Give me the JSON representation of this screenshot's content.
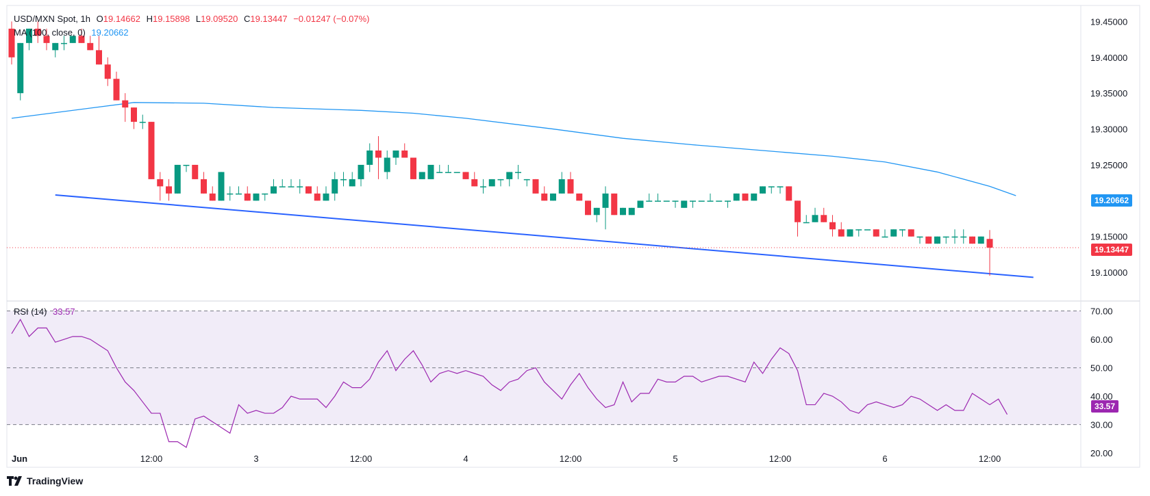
{
  "header": {
    "symbol": "USD/MXN Spot, 1h",
    "open_label": "O",
    "open": "19.14662",
    "high_label": "H",
    "high": "19.15898",
    "low_label": "L",
    "low": "19.09520",
    "close_label": "C",
    "close": "19.13447",
    "change": "−0.01247 (−0.07%)",
    "ma_label": "MA (100, close, 0)",
    "ma_value": "19.20662"
  },
  "rsi": {
    "label": "RSI (14)",
    "value": "33.57"
  },
  "brand": {
    "name": "TradingView"
  },
  "colors": {
    "up": "#089981",
    "down": "#f23645",
    "ma": "#2196f3",
    "trend": "#2962ff",
    "rsi": "#9c27b0",
    "rsi_band": "#ede7f6"
  },
  "chart_data": [
    {
      "type": "candlestick",
      "title": "USD/MXN Spot, 1h",
      "ylim": [
        19.06,
        19.48
      ],
      "y_ticks": [
        "19.45000",
        "19.40000",
        "19.35000",
        "19.30000",
        "19.25000",
        "19.20000",
        "19.15000",
        "19.10000"
      ],
      "x_tick_labels": [
        "Jun",
        "12:00",
        "3",
        "12:00",
        "4",
        "12:00",
        "5",
        "12:00",
        "6",
        "12:00"
      ],
      "x_tick_index": [
        0,
        16,
        28,
        40,
        52,
        64,
        76,
        88,
        100,
        112
      ],
      "candles_ohlc": [
        [
          19.44,
          19.45,
          19.39,
          19.4
        ],
        [
          19.35,
          19.42,
          19.34,
          19.42
        ],
        [
          19.42,
          19.44,
          19.41,
          19.44
        ],
        [
          19.44,
          19.45,
          19.42,
          19.43
        ],
        [
          19.43,
          19.44,
          19.41,
          19.42
        ],
        [
          19.41,
          19.42,
          19.4,
          19.42
        ],
        [
          19.42,
          19.43,
          19.41,
          19.42
        ],
        [
          19.42,
          19.43,
          19.42,
          19.43
        ],
        [
          19.43,
          19.44,
          19.42,
          19.42
        ],
        [
          19.42,
          19.43,
          19.41,
          19.41
        ],
        [
          19.41,
          19.43,
          19.39,
          19.39
        ],
        [
          19.39,
          19.4,
          19.36,
          19.37
        ],
        [
          19.37,
          19.38,
          19.34,
          19.34
        ],
        [
          19.34,
          19.35,
          19.31,
          19.33
        ],
        [
          19.33,
          19.33,
          19.3,
          19.31
        ],
        [
          19.31,
          19.32,
          19.3,
          19.31
        ],
        [
          19.31,
          19.31,
          19.23,
          19.23
        ],
        [
          19.23,
          19.24,
          19.2,
          19.22
        ],
        [
          19.22,
          19.23,
          19.2,
          19.21
        ],
        [
          19.21,
          19.25,
          19.21,
          19.25
        ],
        [
          19.25,
          19.25,
          19.24,
          19.25
        ],
        [
          19.25,
          19.25,
          19.23,
          19.23
        ],
        [
          19.23,
          19.24,
          19.21,
          19.21
        ],
        [
          19.21,
          19.22,
          19.2,
          19.2
        ],
        [
          19.2,
          19.24,
          19.2,
          19.24
        ],
        [
          19.21,
          19.22,
          19.2,
          19.21
        ],
        [
          19.21,
          19.22,
          19.21,
          19.21
        ],
        [
          19.21,
          19.22,
          19.2,
          19.2
        ],
        [
          19.2,
          19.21,
          19.2,
          19.21
        ],
        [
          19.21,
          19.21,
          19.2,
          19.21
        ],
        [
          19.21,
          19.23,
          19.21,
          19.22
        ],
        [
          19.22,
          19.23,
          19.22,
          19.22
        ],
        [
          19.22,
          19.23,
          19.22,
          19.22
        ],
        [
          19.22,
          19.23,
          19.21,
          19.22
        ],
        [
          19.22,
          19.22,
          19.21,
          19.21
        ],
        [
          19.21,
          19.22,
          19.2,
          19.2
        ],
        [
          19.2,
          19.22,
          19.2,
          19.21
        ],
        [
          19.21,
          19.24,
          19.2,
          19.23
        ],
        [
          19.23,
          19.24,
          19.22,
          19.23
        ],
        [
          19.22,
          19.24,
          19.22,
          19.23
        ],
        [
          19.23,
          19.25,
          19.22,
          19.25
        ],
        [
          19.25,
          19.28,
          19.24,
          19.27
        ],
        [
          19.27,
          19.29,
          19.23,
          19.26
        ],
        [
          19.24,
          19.27,
          19.23,
          19.26
        ],
        [
          19.26,
          19.27,
          19.25,
          19.27
        ],
        [
          19.27,
          19.28,
          19.26,
          19.26
        ],
        [
          19.26,
          19.26,
          19.23,
          19.23
        ],
        [
          19.23,
          19.24,
          19.23,
          19.24
        ],
        [
          19.23,
          19.25,
          19.23,
          19.25
        ],
        [
          19.24,
          19.25,
          19.24,
          19.24
        ],
        [
          19.24,
          19.25,
          19.24,
          19.24
        ],
        [
          19.24,
          19.24,
          19.24,
          19.24
        ],
        [
          19.24,
          19.24,
          19.23,
          19.23
        ],
        [
          19.23,
          19.24,
          19.22,
          19.22
        ],
        [
          19.22,
          19.23,
          19.21,
          19.22
        ],
        [
          19.22,
          19.23,
          19.22,
          19.23
        ],
        [
          19.23,
          19.23,
          19.22,
          19.23
        ],
        [
          19.23,
          19.24,
          19.22,
          19.24
        ],
        [
          19.24,
          19.25,
          19.23,
          19.24
        ],
        [
          19.23,
          19.23,
          19.22,
          19.23
        ],
        [
          19.23,
          19.23,
          19.21,
          19.21
        ],
        [
          19.21,
          19.22,
          19.2,
          19.2
        ],
        [
          19.2,
          19.21,
          19.2,
          19.21
        ],
        [
          19.21,
          19.24,
          19.21,
          19.23
        ],
        [
          19.23,
          19.24,
          19.21,
          19.21
        ],
        [
          19.21,
          19.21,
          19.2,
          19.2
        ],
        [
          19.2,
          19.2,
          19.18,
          19.18
        ],
        [
          19.18,
          19.19,
          19.17,
          19.19
        ],
        [
          19.19,
          19.22,
          19.16,
          19.21
        ],
        [
          19.21,
          19.21,
          19.18,
          19.18
        ],
        [
          19.18,
          19.19,
          19.18,
          19.19
        ],
        [
          19.18,
          19.19,
          19.18,
          19.19
        ],
        [
          19.19,
          19.2,
          19.19,
          19.2
        ],
        [
          19.2,
          19.21,
          19.2,
          19.2
        ],
        [
          19.2,
          19.21,
          19.2,
          19.2
        ],
        [
          19.2,
          19.2,
          19.2,
          19.2
        ],
        [
          19.2,
          19.2,
          19.19,
          19.2
        ],
        [
          19.19,
          19.2,
          19.19,
          19.2
        ],
        [
          19.2,
          19.2,
          19.19,
          19.2
        ],
        [
          19.2,
          19.2,
          19.2,
          19.2
        ],
        [
          19.2,
          19.21,
          19.2,
          19.2
        ],
        [
          19.2,
          19.2,
          19.2,
          19.2
        ],
        [
          19.2,
          19.2,
          19.19,
          19.2
        ],
        [
          19.2,
          19.21,
          19.2,
          19.21
        ],
        [
          19.21,
          19.21,
          19.2,
          19.2
        ],
        [
          19.2,
          19.21,
          19.2,
          19.21
        ],
        [
          19.21,
          19.22,
          19.21,
          19.22
        ],
        [
          19.22,
          19.22,
          19.21,
          19.22
        ],
        [
          19.22,
          19.22,
          19.21,
          19.22
        ],
        [
          19.22,
          19.22,
          19.2,
          19.2
        ],
        [
          19.2,
          19.2,
          19.15,
          19.17
        ],
        [
          19.17,
          19.18,
          19.17,
          19.17
        ],
        [
          19.17,
          19.19,
          19.17,
          19.18
        ],
        [
          19.18,
          19.19,
          19.17,
          19.17
        ],
        [
          19.17,
          19.18,
          19.15,
          19.16
        ],
        [
          19.16,
          19.17,
          19.15,
          19.15
        ],
        [
          19.15,
          19.16,
          19.15,
          19.16
        ],
        [
          19.16,
          19.16,
          19.15,
          19.16
        ],
        [
          19.16,
          19.16,
          19.16,
          19.16
        ],
        [
          19.16,
          19.16,
          19.15,
          19.15
        ],
        [
          19.15,
          19.16,
          19.15,
          19.15
        ],
        [
          19.15,
          19.16,
          19.15,
          19.16
        ],
        [
          19.16,
          19.16,
          19.15,
          19.16
        ],
        [
          19.16,
          19.16,
          19.15,
          19.15
        ],
        [
          19.15,
          19.15,
          19.14,
          19.15
        ],
        [
          19.15,
          19.15,
          19.14,
          19.14
        ],
        [
          19.14,
          19.15,
          19.14,
          19.15
        ],
        [
          19.15,
          19.15,
          19.14,
          19.15
        ],
        [
          19.15,
          19.16,
          19.14,
          19.15
        ],
        [
          19.15,
          19.16,
          19.14,
          19.15
        ],
        [
          19.15,
          19.15,
          19.14,
          19.14
        ],
        [
          19.14,
          19.15,
          19.14,
          19.15
        ],
        [
          19.14662,
          19.15898,
          19.0952,
          19.13447
        ]
      ],
      "ma100": [
        [
          0,
          19.315
        ],
        [
          14,
          19.337
        ],
        [
          22,
          19.336
        ],
        [
          30,
          19.33
        ],
        [
          40,
          19.326
        ],
        [
          46,
          19.322
        ],
        [
          52,
          19.315
        ],
        [
          62,
          19.3
        ],
        [
          70,
          19.287
        ],
        [
          78,
          19.278
        ],
        [
          86,
          19.27
        ],
        [
          94,
          19.262
        ],
        [
          100,
          19.254
        ],
        [
          106,
          19.24
        ],
        [
          112,
          19.22
        ],
        [
          115,
          19.207
        ]
      ],
      "ma100_last": "19.20662",
      "last_price": "19.13447",
      "trendline": [
        [
          5,
          19.208
        ],
        [
          117,
          19.093
        ]
      ]
    },
    {
      "type": "line",
      "title": "RSI (14)",
      "ylim": [
        15,
        73
      ],
      "y_ticks": [
        "70.00",
        "60.00",
        "50.00",
        "40.00",
        "30.00",
        "20.00"
      ],
      "levels": [
        70,
        50,
        30
      ],
      "values": [
        62,
        67,
        61,
        64,
        64,
        59,
        60,
        61,
        61,
        60,
        58,
        56,
        50,
        45,
        42,
        38,
        34,
        34,
        24,
        24,
        22,
        32,
        33,
        31,
        29,
        27,
        37,
        34,
        35,
        34,
        34,
        36,
        40,
        39,
        39,
        39,
        36,
        40,
        45,
        43,
        43,
        46,
        52,
        56,
        49,
        53,
        56,
        51,
        45,
        48,
        49,
        48,
        49,
        48,
        47,
        44,
        42,
        45,
        46,
        49,
        50,
        45,
        42,
        39,
        44,
        48,
        43,
        39,
        36,
        37,
        45,
        38,
        41,
        41,
        46,
        45,
        45,
        47,
        47,
        45,
        46,
        47,
        47,
        46,
        45,
        52,
        48,
        53,
        57,
        55,
        49,
        37,
        37,
        41,
        40,
        38,
        35,
        34,
        37,
        38,
        37,
        36,
        37,
        40,
        39,
        37,
        35,
        37,
        35,
        35,
        41,
        39,
        37,
        39,
        33.57
      ],
      "last_value": "33.57"
    }
  ]
}
